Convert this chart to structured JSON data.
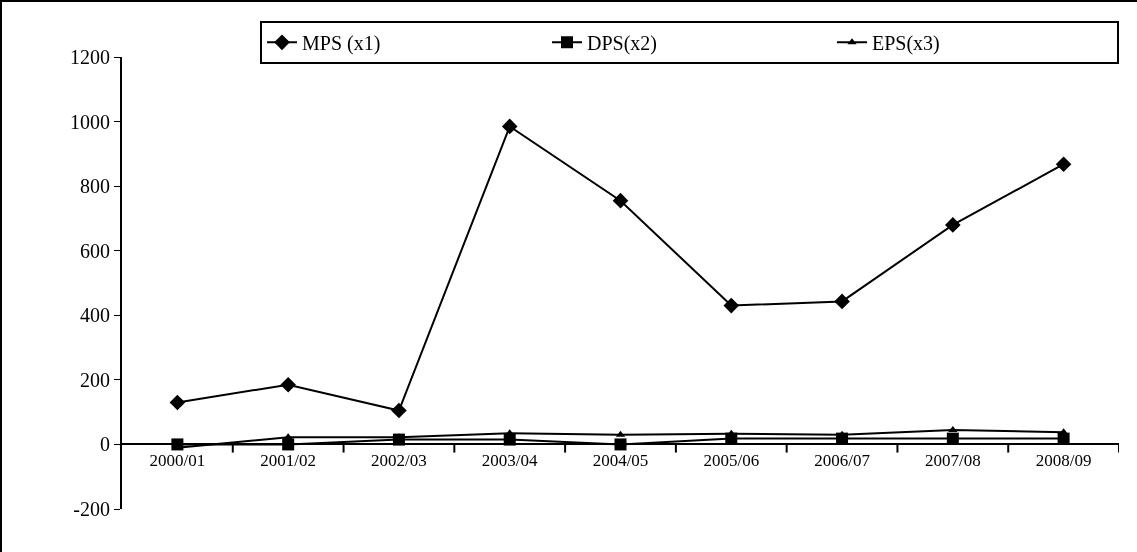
{
  "chart_data": {
    "type": "line",
    "categories": [
      "2000/01",
      "2001/02",
      "2002/03",
      "2003/04",
      "2004/05",
      "2005/06",
      "2006/07",
      "2007/08",
      "2008/09"
    ],
    "series": [
      {
        "name": "MPS (x1)",
        "color": "#000000",
        "marker": "diamond",
        "values": [
          130,
          185,
          105,
          985,
          755,
          430,
          443,
          680,
          868
        ]
      },
      {
        "name": "DPS(x2)",
        "color": "#000000",
        "marker": "square",
        "values": [
          0,
          0,
          15,
          15,
          0,
          18,
          18,
          18,
          18
        ]
      },
      {
        "name": "EPS(x3)",
        "color": "#000000",
        "marker": "triangle",
        "values": [
          -10,
          22,
          22,
          35,
          30,
          33,
          30,
          45,
          38
        ]
      }
    ],
    "ylim": [
      -200,
      1200
    ],
    "yticks": [
      -200,
      0,
      200,
      400,
      600,
      800,
      1000,
      1200
    ],
    "grid": false,
    "legend": "top right",
    "line_style": "solid"
  }
}
